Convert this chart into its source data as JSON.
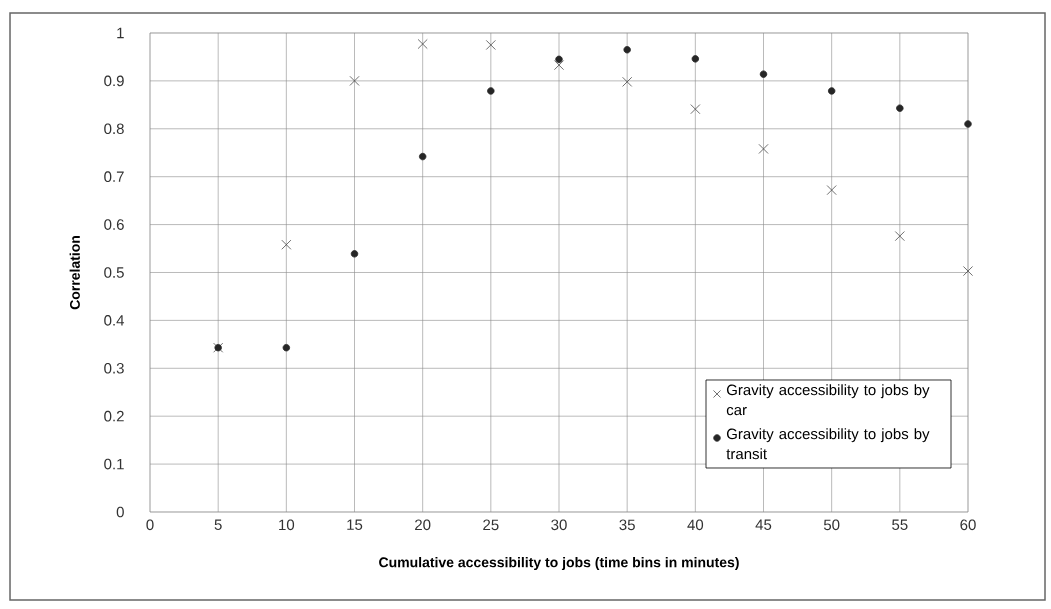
{
  "chart_data": {
    "type": "scatter",
    "xlabel": "Cumulative  accessibility to jobs (time bins in minutes)",
    "ylabel": "Correlation",
    "x": [
      5,
      10,
      15,
      20,
      25,
      30,
      35,
      40,
      45,
      50,
      55,
      60
    ],
    "series": [
      {
        "name": "Gravity accessibility to jobs by car",
        "color": "#4a4a4a",
        "marker": "cross",
        "values": [
          0.343,
          0.558,
          0.9,
          0.977,
          0.975,
          0.933,
          0.898,
          0.841,
          0.758,
          0.672,
          0.576,
          0.503
        ]
      },
      {
        "name": "Gravity accessibility to jobs by transit",
        "color": "#262626",
        "marker": "circle",
        "values": [
          0.343,
          0.343,
          0.539,
          0.742,
          0.879,
          0.945,
          0.965,
          0.946,
          0.914,
          0.879,
          0.843,
          0.81
        ]
      }
    ],
    "xlim": [
      0,
      60
    ],
    "ylim": [
      0,
      1
    ],
    "xticks": [
      0,
      5,
      10,
      15,
      20,
      25,
      30,
      35,
      40,
      45,
      50,
      55,
      60
    ],
    "yticks": [
      0,
      0.1,
      0.2,
      0.3,
      0.4,
      0.5,
      0.6,
      0.7,
      0.8,
      0.9,
      1
    ],
    "grid": true,
    "legend": "bottom right"
  }
}
